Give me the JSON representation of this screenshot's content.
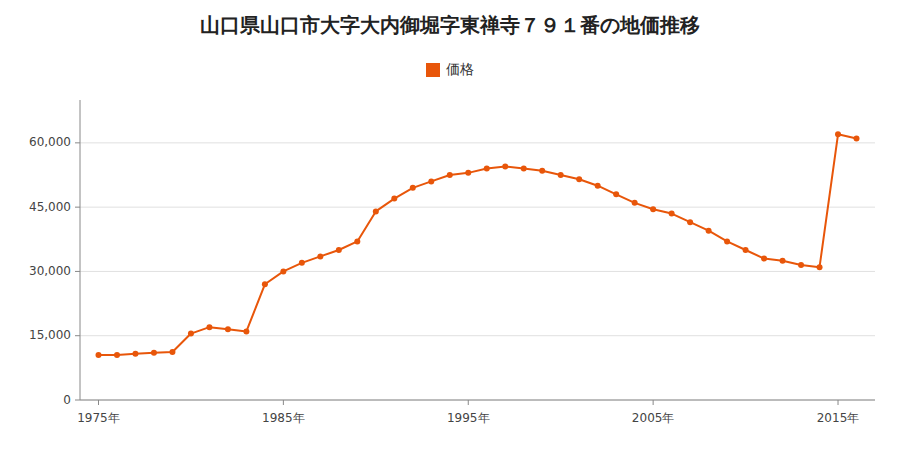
{
  "chart_data": {
    "type": "line",
    "title": "山口県山口市大字大内御堀字東禅寺７９１番の地価推移",
    "x": [
      1975,
      1976,
      1977,
      1978,
      1979,
      1980,
      1981,
      1982,
      1983,
      1984,
      1985,
      1986,
      1987,
      1988,
      1989,
      1990,
      1991,
      1992,
      1993,
      1994,
      1995,
      1996,
      1997,
      1998,
      1999,
      2000,
      2001,
      2002,
      2003,
      2004,
      2005,
      2006,
      2007,
      2008,
      2009,
      2010,
      2011,
      2012,
      2013,
      2014,
      2015,
      2016
    ],
    "series": [
      {
        "name": "価格",
        "color": "#E8560A",
        "marker": "circle",
        "values": [
          10500,
          10500,
          10800,
          11000,
          11200,
          15500,
          17000,
          16500,
          16000,
          27000,
          30000,
          32000,
          33500,
          35000,
          37000,
          44000,
          47000,
          49500,
          51000,
          52500,
          53000,
          54000,
          54500,
          54000,
          53500,
          52500,
          51500,
          50000,
          48000,
          46000,
          44500,
          43500,
          41500,
          39500,
          37000,
          35000,
          33000,
          32500,
          31500,
          31000,
          62000,
          61000
        ]
      }
    ],
    "xlim": [
      1974,
      2017
    ],
    "xticks": [
      {
        "value": 1975,
        "label": "1975年"
      },
      {
        "value": 1985,
        "label": "1985年"
      },
      {
        "value": 1995,
        "label": "1995年"
      },
      {
        "value": 2005,
        "label": "2005年"
      },
      {
        "value": 2015,
        "label": "2015年"
      }
    ],
    "ylim": [
      0,
      70000
    ],
    "yticks": [
      0,
      {
        "value": 15000,
        "label": "15,000"
      },
      {
        "value": 30000,
        "label": "30,000"
      },
      {
        "value": 45000,
        "label": "45,000"
      },
      {
        "value": 60000,
        "label": "60,000"
      }
    ],
    "grid": true,
    "legend": "top"
  }
}
